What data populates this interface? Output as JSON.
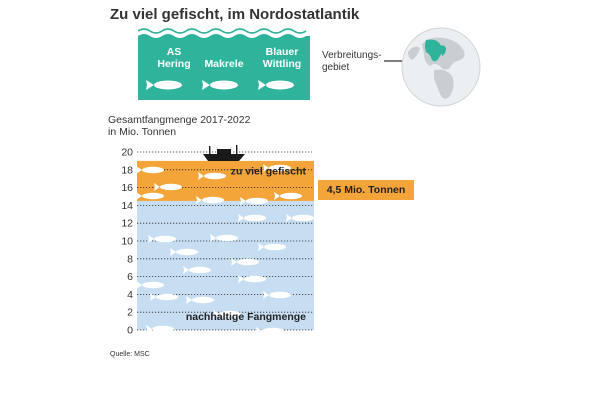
{
  "title": "Zu viel gefischt, im Nordostatlantik",
  "species": [
    "AS Hering",
    "Makrele",
    "Blauer Wittling"
  ],
  "species_lines": [
    [
      "AS",
      "Hering"
    ],
    [
      "Makrele"
    ],
    [
      "Blauer",
      "Wittling"
    ]
  ],
  "distribution_label_lines": [
    "Verbreitungs-",
    "gebiet"
  ],
  "y_axis_title_lines": [
    "Gesamtfangmenge 2017-2022",
    "in Mio. Tonnen"
  ],
  "source": "Quelle: MSC",
  "colors": {
    "teal": "#2fb39b",
    "overfished": "#f4a53a",
    "sustainable": "#c7def2",
    "fish": "#ffffff"
  },
  "icons": [
    "fish-icon",
    "fishing-boat-icon",
    "globe-icon",
    "arrow-icon"
  ],
  "chart_data": {
    "type": "bar",
    "ylabel": "Gesamtfangmenge 2017-2022 in Mio. Tonnen",
    "ylim": [
      0,
      20
    ],
    "yticks": [
      0,
      2,
      4,
      6,
      8,
      10,
      12,
      14,
      16,
      18,
      20
    ],
    "bands": [
      {
        "name": "nachhaltige Fangmenge",
        "from": 0,
        "to": 14.5
      },
      {
        "name": "zu viel gefischt",
        "from": 14.5,
        "to": 19
      }
    ],
    "annotation": "4,5 Mio. Tonnen"
  }
}
